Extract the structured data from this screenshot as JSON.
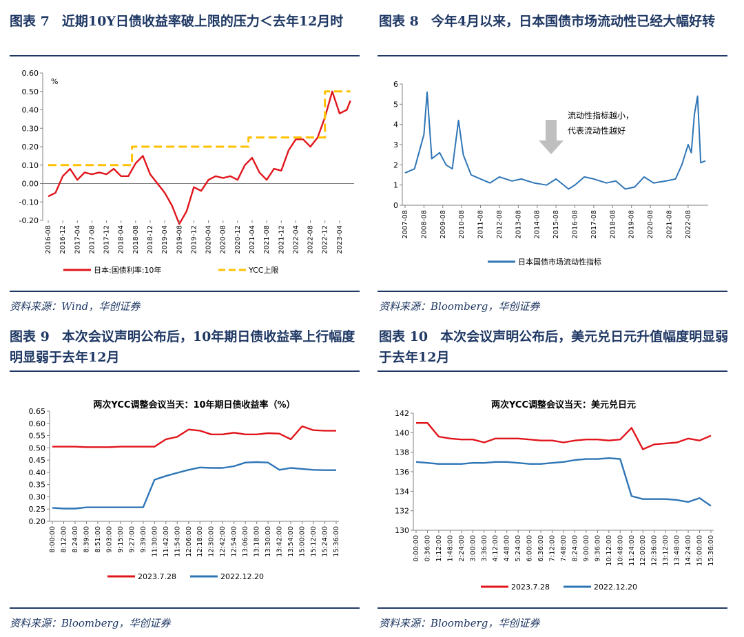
{
  "panels": [
    {
      "figure_label": "图表 7",
      "figure_title": "近期10Y日债收益率破上限的压力＜去年12月时",
      "source": "资料来源：Wind，华创证券"
    },
    {
      "figure_label": "图表 8",
      "figure_title": "今年4月以来，日本国债市场流动性已经大幅好转",
      "source": "资料来源：Bloomberg，华创证券"
    },
    {
      "figure_label": "图表 9",
      "figure_title": "本次会议声明公布后，10年期日债收益率上行幅度明显弱于去年12月",
      "source": "资料来源：Bloomberg，华创证券"
    },
    {
      "figure_label": "图表 10",
      "figure_title": "本次会议声明公布后，美元兑日元升值幅度明显弱于去年12月",
      "source": "资料来源：Bloomberg，华创证券"
    }
  ],
  "chart_data": [
    {
      "type": "line",
      "title": "",
      "ylabel": "%",
      "ylim": [
        -0.2,
        0.6
      ],
      "yticks": [
        "0.60",
        "0.50",
        "0.40",
        "0.30",
        "0.20",
        "0.10",
        "0.00",
        "-0.10",
        "-0.20"
      ],
      "xticks": [
        "2016-08",
        "2016-12",
        "2017-04",
        "2017-08",
        "2017-12",
        "2018-04",
        "2018-08",
        "2018-12",
        "2019-04",
        "2019-08",
        "2019-12",
        "2020-04",
        "2020-08",
        "2020-12",
        "2021-04",
        "2021-08",
        "2021-12",
        "2022-04",
        "2022-08",
        "2022-12",
        "2023-04"
      ],
      "series": [
        {
          "name": "日本:国债利率:10年",
          "color": "#e0151b",
          "style": "solid",
          "x": [
            "2016-08",
            "2016-10",
            "2016-12",
            "2017-02",
            "2017-04",
            "2017-06",
            "2017-08",
            "2017-10",
            "2017-12",
            "2018-02",
            "2018-04",
            "2018-06",
            "2018-08",
            "2018-10",
            "2018-12",
            "2019-02",
            "2019-04",
            "2019-06",
            "2019-08",
            "2019-10",
            "2019-12",
            "2020-02",
            "2020-04",
            "2020-06",
            "2020-08",
            "2020-10",
            "2020-12",
            "2021-02",
            "2021-04",
            "2021-06",
            "2021-08",
            "2021-10",
            "2021-12",
            "2022-02",
            "2022-04",
            "2022-06",
            "2022-08",
            "2022-10",
            "2022-12",
            "2023-02",
            "2023-04",
            "2023-06",
            "2023-07"
          ],
          "values": [
            -0.07,
            -0.05,
            0.04,
            0.08,
            0.02,
            0.06,
            0.05,
            0.06,
            0.05,
            0.08,
            0.04,
            0.04,
            0.11,
            0.15,
            0.05,
            0.0,
            -0.05,
            -0.12,
            -0.22,
            -0.15,
            -0.02,
            -0.04,
            0.02,
            0.04,
            0.03,
            0.04,
            0.02,
            0.1,
            0.14,
            0.06,
            0.02,
            0.08,
            0.07,
            0.18,
            0.24,
            0.24,
            0.2,
            0.25,
            0.36,
            0.5,
            0.38,
            0.4,
            0.45
          ]
        },
        {
          "name": "YCC上限",
          "color": "#ffc000",
          "style": "dash",
          "x": [
            "2016-08",
            "2018-07",
            "2018-07",
            "2021-03",
            "2021-03",
            "2022-12",
            "2022-12",
            "2023-07"
          ],
          "values": [
            0.1,
            0.1,
            0.2,
            0.2,
            0.25,
            0.25,
            0.5,
            0.5
          ]
        }
      ],
      "legend": "bottom"
    },
    {
      "type": "line",
      "title": "",
      "ylim": [
        0,
        6
      ],
      "yticks": [
        "6",
        "5",
        "4",
        "3",
        "2",
        "1",
        "0"
      ],
      "xticks": [
        "2007-08",
        "2008-08",
        "2009-08",
        "2010-08",
        "2011-08",
        "2012-08",
        "2013-08",
        "2014-08",
        "2015-08",
        "2016-08",
        "2017-08",
        "2018-08",
        "2019-08",
        "2020-08",
        "2021-08",
        "2022-08"
      ],
      "series": [
        {
          "name": "日本国债市场流动性指标",
          "color": "#2e75b6",
          "x": [
            "2007-08",
            "2008-02",
            "2008-08",
            "2008-10",
            "2009-01",
            "2009-06",
            "2009-10",
            "2010-02",
            "2010-06",
            "2010-09",
            "2011-02",
            "2011-08",
            "2012-02",
            "2012-08",
            "2013-04",
            "2013-10",
            "2014-06",
            "2015-02",
            "2015-08",
            "2016-04",
            "2016-08",
            "2017-02",
            "2017-08",
            "2018-04",
            "2018-10",
            "2019-04",
            "2019-10",
            "2020-04",
            "2020-10",
            "2021-06",
            "2021-12",
            "2022-04",
            "2022-08",
            "2022-10",
            "2022-12",
            "2023-02",
            "2023-04",
            "2023-07"
          ],
          "values": [
            1.6,
            1.8,
            3.5,
            5.6,
            2.3,
            2.6,
            2.0,
            1.8,
            4.2,
            2.5,
            1.5,
            1.3,
            1.1,
            1.4,
            1.2,
            1.3,
            1.1,
            1.0,
            1.3,
            0.8,
            1.0,
            1.4,
            1.3,
            1.1,
            1.2,
            0.8,
            0.9,
            1.4,
            1.1,
            1.2,
            1.3,
            2.0,
            3.0,
            2.6,
            4.5,
            5.4,
            2.1,
            2.2
          ]
        }
      ],
      "annotation": [
        "流动性指标越小，",
        "代表流动性越好"
      ],
      "legend": "bottom"
    },
    {
      "type": "line",
      "title": "两次YCC调整会议当天：10年期日债收益率（%）",
      "ylim": [
        0.2,
        0.65
      ],
      "yticks": [
        "0.65",
        "0.60",
        "0.55",
        "0.50",
        "0.45",
        "0.40",
        "0.35",
        "0.30",
        "0.25",
        "0.20"
      ],
      "xticks": [
        "8:00:00",
        "8:12:00",
        "8:24:00",
        "8:39:00",
        "8:51:00",
        "9:03:00",
        "9:15:00",
        "9:27:00",
        "9:39:00",
        "11:30:00",
        "11:42:00",
        "11:54:00",
        "12:06:00",
        "12:18:00",
        "12:30:00",
        "12:42:00",
        "12:54:00",
        "13:06:00",
        "13:18:00",
        "13:30:00",
        "13:42:00",
        "13:54:00",
        "15:00:00",
        "15:12:00",
        "15:24:00",
        "15:36:00"
      ],
      "series": [
        {
          "name": "2023.7.28",
          "color": "#e0151b",
          "values": [
            0.505,
            0.505,
            0.505,
            0.503,
            0.503,
            0.503,
            0.505,
            0.505,
            0.505,
            0.505,
            0.535,
            0.545,
            0.575,
            0.57,
            0.555,
            0.555,
            0.562,
            0.555,
            0.555,
            0.56,
            0.558,
            0.535,
            0.588,
            0.572,
            0.57,
            0.57
          ]
        },
        {
          "name": "2022.12.20",
          "color": "#2e75b6",
          "values": [
            0.255,
            0.252,
            0.252,
            0.257,
            0.257,
            0.257,
            0.257,
            0.257,
            0.257,
            0.37,
            0.385,
            0.398,
            0.41,
            0.42,
            0.418,
            0.418,
            0.425,
            0.44,
            0.442,
            0.44,
            0.41,
            0.418,
            0.414,
            0.41,
            0.409,
            0.409
          ]
        }
      ],
      "legend": "bottom"
    },
    {
      "type": "line",
      "title": "两次YCC调整会议当天：美元兑日元",
      "ylim": [
        130,
        142
      ],
      "yticks": [
        "142",
        "140",
        "138",
        "136",
        "134",
        "132",
        "130"
      ],
      "xticks": [
        "0:00:00",
        "0:36:00",
        "1:12:00",
        "1:48:00",
        "2:24:00",
        "3:00:00",
        "3:36:00",
        "4:12:00",
        "4:48:00",
        "5:24:00",
        "6:00:00",
        "6:36:00",
        "7:12:00",
        "7:48:00",
        "8:24:00",
        "9:00:00",
        "9:36:00",
        "10:12:00",
        "10:48:00",
        "11:24:00",
        "12:00:00",
        "12:36:00",
        "13:12:00",
        "13:48:00",
        "14:24:00",
        "15:00:00",
        "15:36:00"
      ],
      "series": [
        {
          "name": "2023.7.28",
          "color": "#e0151b",
          "values": [
            141.0,
            141.0,
            139.6,
            139.4,
            139.3,
            139.3,
            139.0,
            139.4,
            139.4,
            139.4,
            139.3,
            139.2,
            139.2,
            139.0,
            139.2,
            139.3,
            139.3,
            139.2,
            139.3,
            140.5,
            138.3,
            138.8,
            138.9,
            139.0,
            139.4,
            139.2,
            139.7
          ]
        },
        {
          "name": "2022.12.20",
          "color": "#2e75b6",
          "values": [
            137.0,
            136.9,
            136.8,
            136.8,
            136.8,
            136.9,
            136.9,
            137.0,
            137.0,
            136.9,
            136.8,
            136.8,
            136.9,
            137.0,
            137.2,
            137.3,
            137.3,
            137.4,
            137.3,
            133.5,
            133.2,
            133.2,
            133.2,
            133.1,
            132.9,
            133.3,
            132.5
          ]
        }
      ],
      "legend": "bottom"
    }
  ]
}
